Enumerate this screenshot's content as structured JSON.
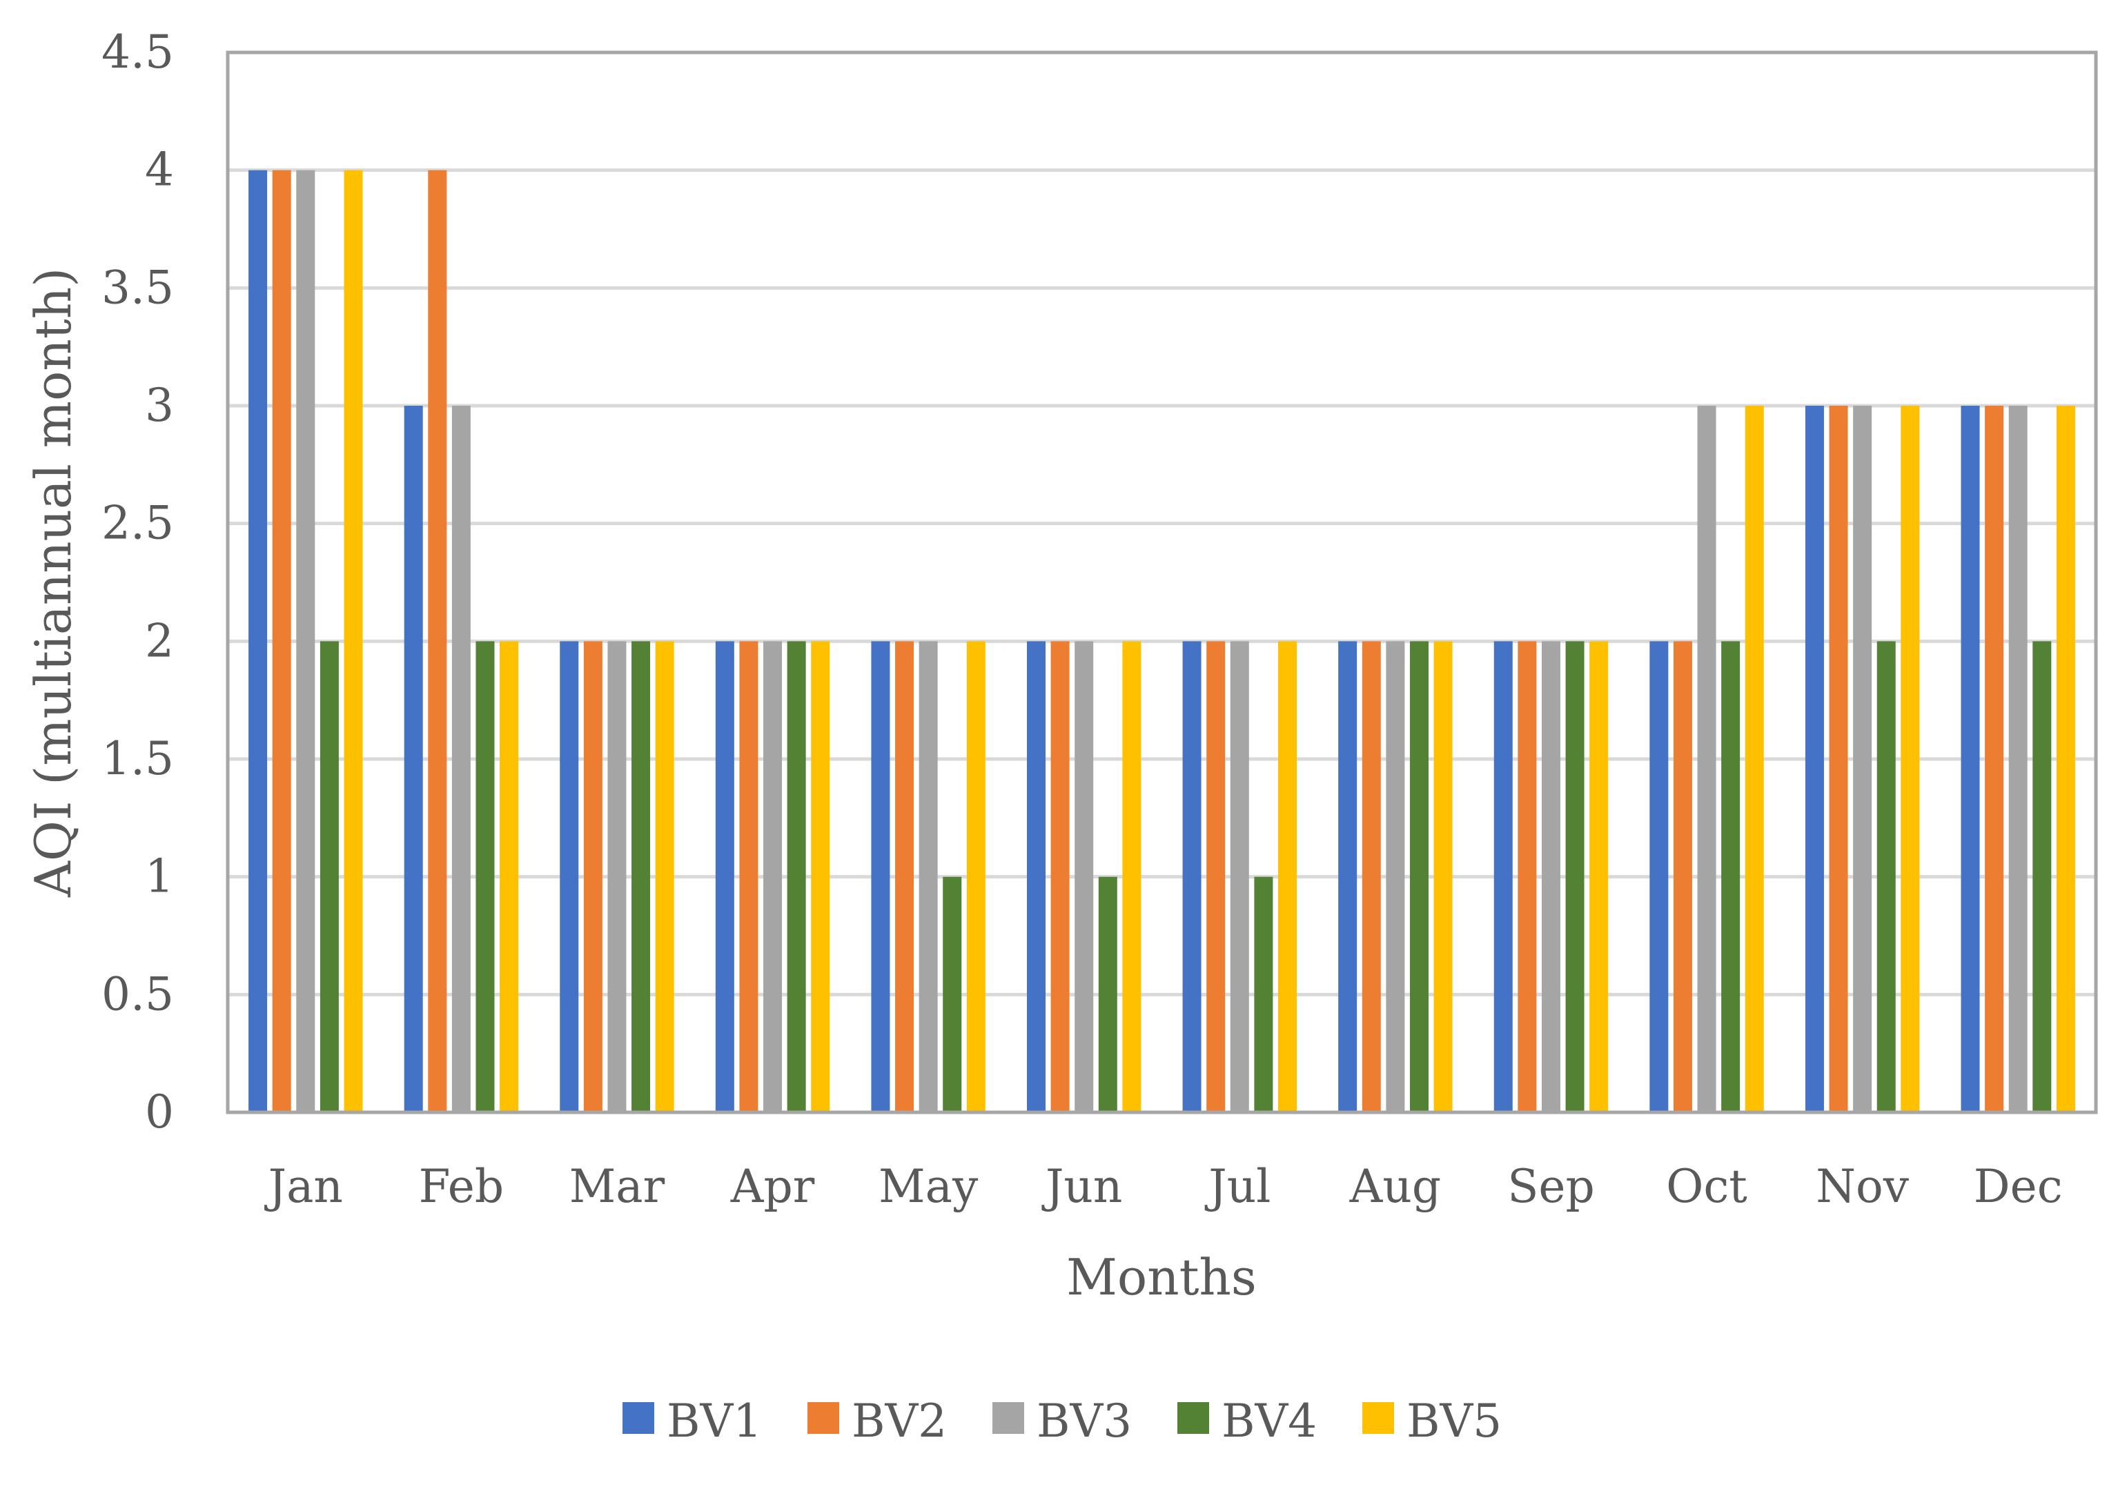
{
  "chart_data": {
    "type": "bar",
    "title": "",
    "xlabel": "Months",
    "ylabel": "AQI (multiannual month)",
    "ylim": [
      0,
      4.5
    ],
    "yticks": [
      "0",
      "0.5",
      "1",
      "1.5",
      "2",
      "2.5",
      "3",
      "3.5",
      "4",
      "4.5"
    ],
    "categories": [
      "Jan",
      "Feb",
      "Mar",
      "Apr",
      "May",
      "Jun",
      "Jul",
      "Aug",
      "Sep",
      "Oct",
      "Nov",
      "Dec"
    ],
    "grid": true,
    "legend_position": "bottom",
    "series": [
      {
        "name": "BV1",
        "color": "#4472C4",
        "values": [
          4,
          3,
          2,
          2,
          2,
          2,
          2,
          2,
          2,
          2,
          3,
          3
        ]
      },
      {
        "name": "BV2",
        "color": "#ED7D31",
        "values": [
          4,
          4,
          2,
          2,
          2,
          2,
          2,
          2,
          2,
          2,
          3,
          3
        ]
      },
      {
        "name": "BV3",
        "color": "#A5A5A5",
        "values": [
          4,
          3,
          2,
          2,
          2,
          2,
          2,
          2,
          2,
          3,
          3,
          3
        ]
      },
      {
        "name": "BV4",
        "color": "#548235",
        "values": [
          2,
          2,
          2,
          2,
          1,
          1,
          1,
          2,
          2,
          2,
          2,
          2
        ]
      },
      {
        "name": "BV5",
        "color": "#FFC000",
        "values": [
          4,
          2,
          2,
          2,
          2,
          2,
          2,
          2,
          2,
          3,
          3,
          3
        ]
      }
    ]
  }
}
